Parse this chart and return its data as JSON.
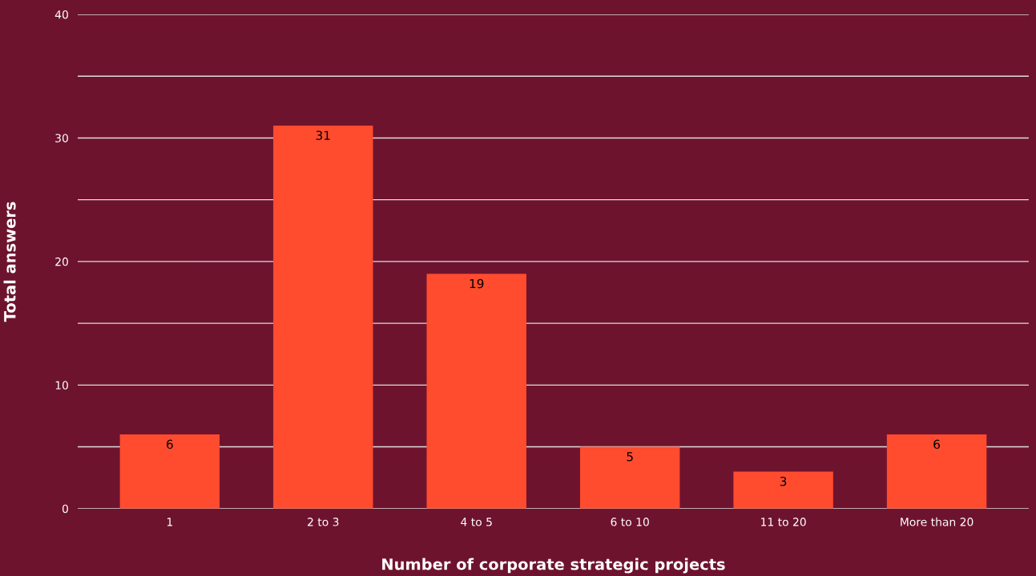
{
  "chart_data": {
    "type": "bar",
    "xlabel": "Number of corporate strategic projects",
    "ylabel": "Total answers",
    "categories": [
      "1",
      "2 to 3",
      "4 to 5",
      "6 to 10",
      "11 to 20",
      "More than 20"
    ],
    "values": [
      6,
      31,
      19,
      5,
      3,
      6
    ],
    "color": "#ff4b2e",
    "data_labels": true,
    "ylim": [
      0,
      40
    ],
    "yticks": [
      0,
      {
        "value": 5,
        "label": null
      },
      10,
      {
        "value": 15,
        "label": null
      },
      20,
      {
        "value": 25,
        "label": null
      },
      30,
      {
        "value": 35,
        "label": null
      },
      40
    ],
    "grid": "y",
    "legend": false
  }
}
